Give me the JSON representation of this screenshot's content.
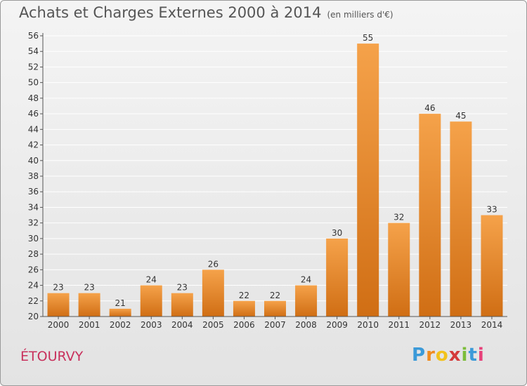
{
  "header": {
    "title": "Achats et Charges Externes 2000 à 2014",
    "unit": "(en milliers d'€)"
  },
  "commune": "ÉTOURVY",
  "logo": {
    "text": "Proxiti"
  },
  "colors": {
    "bar_light": "#f5a24a",
    "bar_dark": "#d06e14",
    "grid": "#ffffff",
    "axis": "#555555"
  },
  "chart_data": {
    "type": "bar",
    "title": "Achats et Charges Externes 2000 à 2014",
    "subtitle": "(en milliers d'€)",
    "xlabel": "",
    "ylabel": "",
    "categories": [
      "2000",
      "2001",
      "2002",
      "2003",
      "2004",
      "2005",
      "2006",
      "2007",
      "2008",
      "2009",
      "2010",
      "2011",
      "2012",
      "2013",
      "2014"
    ],
    "values": [
      23,
      23,
      21,
      24,
      23,
      26,
      22,
      22,
      24,
      30,
      55,
      32,
      46,
      45,
      33
    ],
    "ylim": [
      20,
      56
    ],
    "yticks": [
      20,
      22,
      24,
      26,
      28,
      30,
      32,
      34,
      36,
      38,
      40,
      42,
      44,
      46,
      48,
      50,
      52,
      54,
      56
    ],
    "grid": true,
    "legend": "none"
  }
}
